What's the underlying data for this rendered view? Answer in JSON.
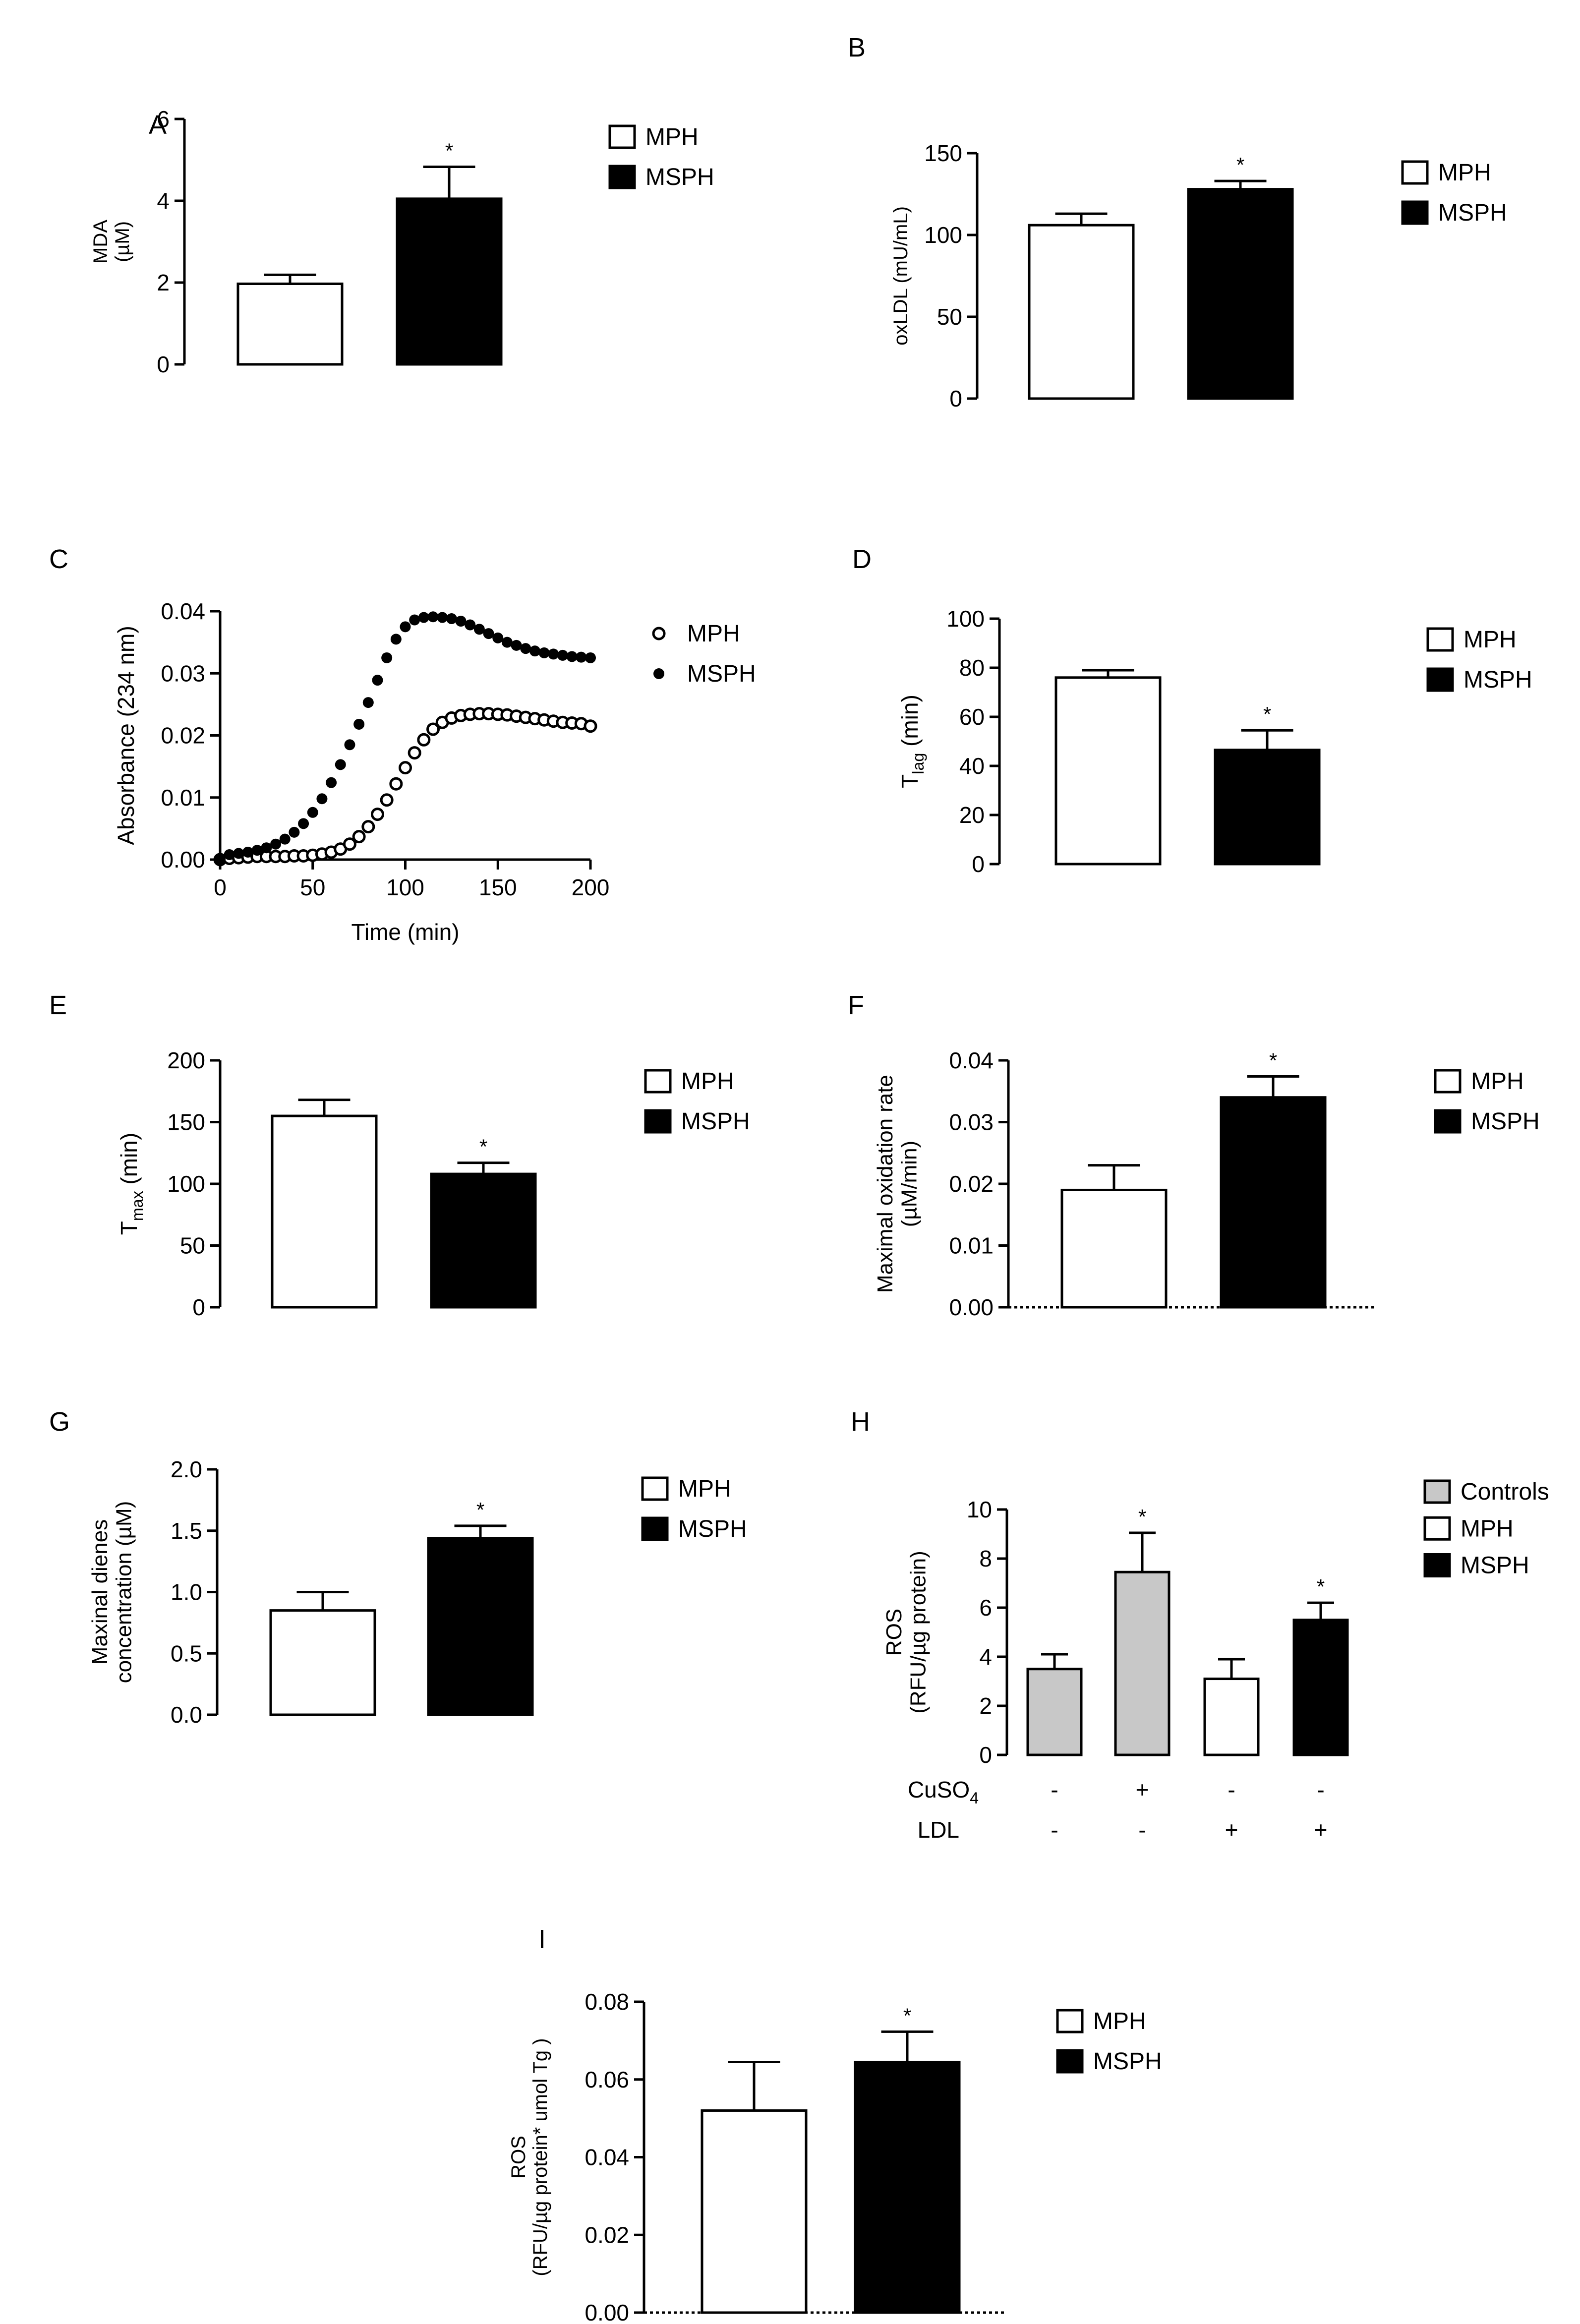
{
  "colors": {
    "white": "#ffffff",
    "black": "#000000",
    "gray": "#c8c8c8"
  },
  "chart_data": [
    {
      "id": "A",
      "type": "bar",
      "panel_label": "A",
      "ylabel_lines": [
        "MDA",
        "(µM)"
      ],
      "ylim": [
        0,
        6
      ],
      "yticks": [
        "0",
        "2",
        "4",
        "6"
      ],
      "legend": [
        {
          "name": "MPH",
          "fill": "white"
        },
        {
          "name": "MSPH",
          "fill": "black"
        }
      ],
      "bars": [
        {
          "name": "MPH",
          "value": 1.97,
          "err": 0.22,
          "fill": "white",
          "sig": ""
        },
        {
          "name": "MSPH",
          "value": 4.05,
          "err": 0.78,
          "fill": "black",
          "sig": "*"
        }
      ]
    },
    {
      "id": "B",
      "type": "bar",
      "panel_label": "B",
      "ylabel_lines": [
        "oxLDL (mU/mL)"
      ],
      "ylim": [
        0,
        150
      ],
      "yticks": [
        "0",
        "50",
        "100",
        "150"
      ],
      "legend": [
        {
          "name": "MPH",
          "fill": "white"
        },
        {
          "name": "MSPH",
          "fill": "black"
        }
      ],
      "bars": [
        {
          "name": "MPH",
          "value": 106,
          "err": 7,
          "fill": "white",
          "sig": ""
        },
        {
          "name": "MSPH",
          "value": 128,
          "err": 5,
          "fill": "black",
          "sig": "*"
        }
      ]
    },
    {
      "id": "C",
      "type": "scatter",
      "panel_label": "C",
      "xlabel": "Time (min)",
      "ylabel": "Absorbance (234 nm)",
      "xlim": [
        0,
        200
      ],
      "ylim": [
        0,
        0.04
      ],
      "xticks": [
        "0",
        "50",
        "100",
        "150",
        "200"
      ],
      "yticks": [
        "0.00",
        "0.01",
        "0.02",
        "0.03",
        "0.04"
      ],
      "legend": [
        {
          "name": "MPH",
          "marker": "open"
        },
        {
          "name": "MSPH",
          "marker": "filled"
        }
      ],
      "series": [
        {
          "name": "MPH",
          "marker": "open",
          "x": [
            0,
            5,
            10,
            15,
            20,
            25,
            30,
            35,
            40,
            45,
            50,
            55,
            60,
            65,
            70,
            75,
            80,
            85,
            90,
            95,
            100,
            105,
            110,
            115,
            120,
            125,
            130,
            135,
            140,
            145,
            150,
            155,
            160,
            165,
            170,
            175,
            180,
            185,
            190,
            195,
            200
          ],
          "y": [
            0.0,
            0.0002,
            0.0003,
            0.0004,
            0.0005,
            0.0005,
            0.0005,
            0.0005,
            0.0006,
            0.0006,
            0.0007,
            0.0009,
            0.0012,
            0.0017,
            0.0025,
            0.0037,
            0.0053,
            0.0073,
            0.0096,
            0.0122,
            0.0148,
            0.0172,
            0.0193,
            0.021,
            0.0221,
            0.0228,
            0.0232,
            0.0234,
            0.0235,
            0.0235,
            0.0234,
            0.0233,
            0.0231,
            0.0229,
            0.0227,
            0.0225,
            0.0223,
            0.0221,
            0.022,
            0.0219,
            0.0215
          ]
        },
        {
          "name": "MSPH",
          "marker": "filled",
          "x": [
            0,
            5,
            10,
            15,
            20,
            25,
            30,
            35,
            40,
            45,
            50,
            55,
            60,
            65,
            70,
            75,
            80,
            85,
            90,
            95,
            100,
            105,
            110,
            115,
            120,
            125,
            130,
            135,
            140,
            145,
            150,
            155,
            160,
            165,
            170,
            175,
            180,
            185,
            190,
            195,
            200
          ],
          "y": [
            0.0,
            0.0008,
            0.001,
            0.0012,
            0.0015,
            0.0019,
            0.0025,
            0.0033,
            0.0044,
            0.0058,
            0.0076,
            0.0098,
            0.0124,
            0.0153,
            0.0185,
            0.0218,
            0.0253,
            0.0289,
            0.0325,
            0.0355,
            0.0375,
            0.0386,
            0.039,
            0.0391,
            0.039,
            0.0388,
            0.0384,
            0.0378,
            0.0371,
            0.0364,
            0.0357,
            0.035,
            0.0345,
            0.034,
            0.0336,
            0.0333,
            0.0331,
            0.0329,
            0.0327,
            0.0326,
            0.0325
          ]
        }
      ]
    },
    {
      "id": "D",
      "type": "bar",
      "panel_label": "D",
      "ylabel_main": "T",
      "ylabel_sub": "lag",
      "ylabel_tail": " (min)",
      "ylim": [
        0,
        100
      ],
      "yticks": [
        "0",
        "20",
        "40",
        "60",
        "80",
        "100"
      ],
      "legend": [
        {
          "name": "MPH",
          "fill": "white"
        },
        {
          "name": "MSPH",
          "fill": "black"
        }
      ],
      "bars": [
        {
          "name": "MPH",
          "value": 76,
          "err": 3,
          "fill": "white",
          "sig": ""
        },
        {
          "name": "MSPH",
          "value": 46.5,
          "err": 8,
          "fill": "black",
          "sig": "*"
        }
      ]
    },
    {
      "id": "E",
      "type": "bar",
      "panel_label": "E",
      "ylabel_main": "T",
      "ylabel_sub": "max",
      "ylabel_tail": " (min)",
      "ylim": [
        0,
        200
      ],
      "yticks": [
        "0",
        "50",
        "100",
        "150",
        "200"
      ],
      "legend": [
        {
          "name": "MPH",
          "fill": "white"
        },
        {
          "name": "MSPH",
          "fill": "black"
        }
      ],
      "bars": [
        {
          "name": "MPH",
          "value": 155,
          "err": 13,
          "fill": "white",
          "sig": ""
        },
        {
          "name": "MSPH",
          "value": 108,
          "err": 9,
          "fill": "black",
          "sig": "*"
        }
      ]
    },
    {
      "id": "F",
      "type": "bar",
      "panel_label": "F",
      "ylabel_lines": [
        "Maximal oxidation rate",
        "(µM/min)"
      ],
      "ylim": [
        0,
        0.04
      ],
      "yticks": [
        "0.00",
        "0.01",
        "0.02",
        "0.03",
        "0.04"
      ],
      "legend": [
        {
          "name": "MPH",
          "fill": "white"
        },
        {
          "name": "MSPH",
          "fill": "black"
        }
      ],
      "bars": [
        {
          "name": "MPH",
          "value": 0.019,
          "err": 0.004,
          "fill": "white",
          "sig": ""
        },
        {
          "name": "MSPH",
          "value": 0.034,
          "err": 0.0034,
          "fill": "black",
          "sig": "*"
        }
      ]
    },
    {
      "id": "G",
      "type": "bar",
      "panel_label": "G",
      "ylabel_lines": [
        "Maxinal dienes",
        "concentration (µM)"
      ],
      "ylim": [
        0,
        2
      ],
      "yticks": [
        "0.0",
        "0.5",
        "1.0",
        "1.5",
        "2.0"
      ],
      "legend": [
        {
          "name": "MPH",
          "fill": "white"
        },
        {
          "name": "MSPH",
          "fill": "black"
        }
      ],
      "bars": [
        {
          "name": "MPH",
          "value": 0.85,
          "err": 0.15,
          "fill": "white",
          "sig": ""
        },
        {
          "name": "MSPH",
          "value": 1.44,
          "err": 0.1,
          "fill": "black",
          "sig": "*"
        }
      ]
    },
    {
      "id": "H",
      "type": "bar",
      "panel_label": "H",
      "ylabel_lines": [
        "ROS",
        "(RFU/µg protein)"
      ],
      "ylim": [
        0,
        10
      ],
      "yticks": [
        "0",
        "2",
        "4",
        "6",
        "8",
        "10"
      ],
      "legend": [
        {
          "name": "Controls",
          "fill": "gray"
        },
        {
          "name": "MPH",
          "fill": "white"
        },
        {
          "name": "MSPH",
          "fill": "black"
        }
      ],
      "row_label_cuso4_main": "CuSO",
      "row_label_cuso4_sub": "4",
      "row_label_ldl": "LDL",
      "cuso4": [
        "-",
        "+",
        "-",
        "-"
      ],
      "ldl": [
        "-",
        "-",
        "+",
        "+"
      ],
      "bars": [
        {
          "name": "Controls",
          "value": 3.5,
          "err": 0.6,
          "fill": "gray",
          "sig": ""
        },
        {
          "name": "Controls",
          "value": 7.45,
          "err": 1.6,
          "fill": "gray",
          "sig": "*"
        },
        {
          "name": "MPH",
          "value": 3.1,
          "err": 0.8,
          "fill": "white",
          "sig": ""
        },
        {
          "name": "MSPH",
          "value": 5.5,
          "err": 0.7,
          "fill": "black",
          "sig": "*"
        }
      ]
    },
    {
      "id": "I",
      "type": "bar",
      "panel_label": "I",
      "ylabel_lines": [
        "ROS",
        "(RFU/µg protein* umol Tg )"
      ],
      "ylim": [
        0,
        0.08
      ],
      "yticks": [
        "0.00",
        "0.02",
        "0.04",
        "0.06",
        "0.08"
      ],
      "legend": [
        {
          "name": "MPH",
          "fill": "white"
        },
        {
          "name": "MSPH",
          "fill": "black"
        }
      ],
      "bars": [
        {
          "name": "MPH",
          "value": 0.052,
          "err": 0.0125,
          "fill": "white",
          "sig": ""
        },
        {
          "name": "MSPH",
          "value": 0.0645,
          "err": 0.0078,
          "fill": "black",
          "sig": "*"
        }
      ]
    }
  ]
}
